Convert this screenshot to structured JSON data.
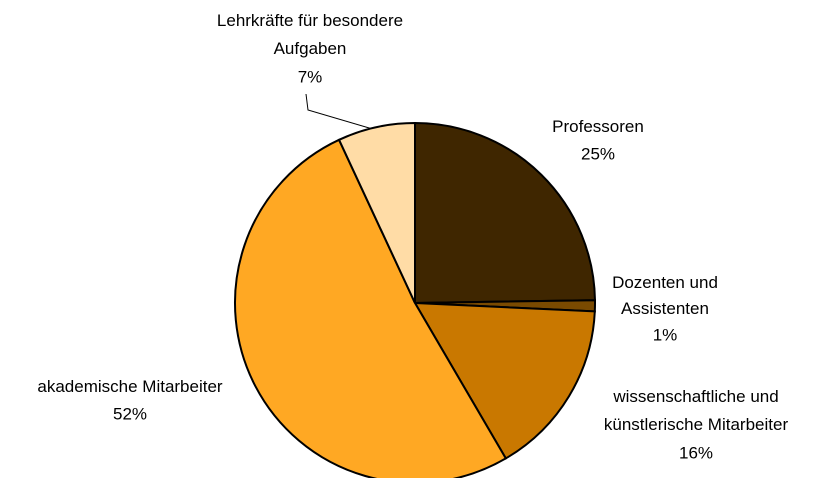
{
  "chart_data": {
    "type": "pie",
    "categories": [
      "Professoren",
      "Dozenten und Assistenten",
      "wissenschaftliche und künstlerische Mitarbeiter",
      "akademische Mitarbeiter",
      "Lehrkräfte für besondere Aufgaben"
    ],
    "values": [
      25,
      1,
      16,
      52,
      7
    ],
    "value_labels": [
      "25%",
      "1%",
      "16%",
      "52%",
      "7%"
    ],
    "colors": [
      "#3f2600",
      "#7a4a00",
      "#c97800",
      "#ffa823",
      "#ffdca6"
    ]
  }
}
